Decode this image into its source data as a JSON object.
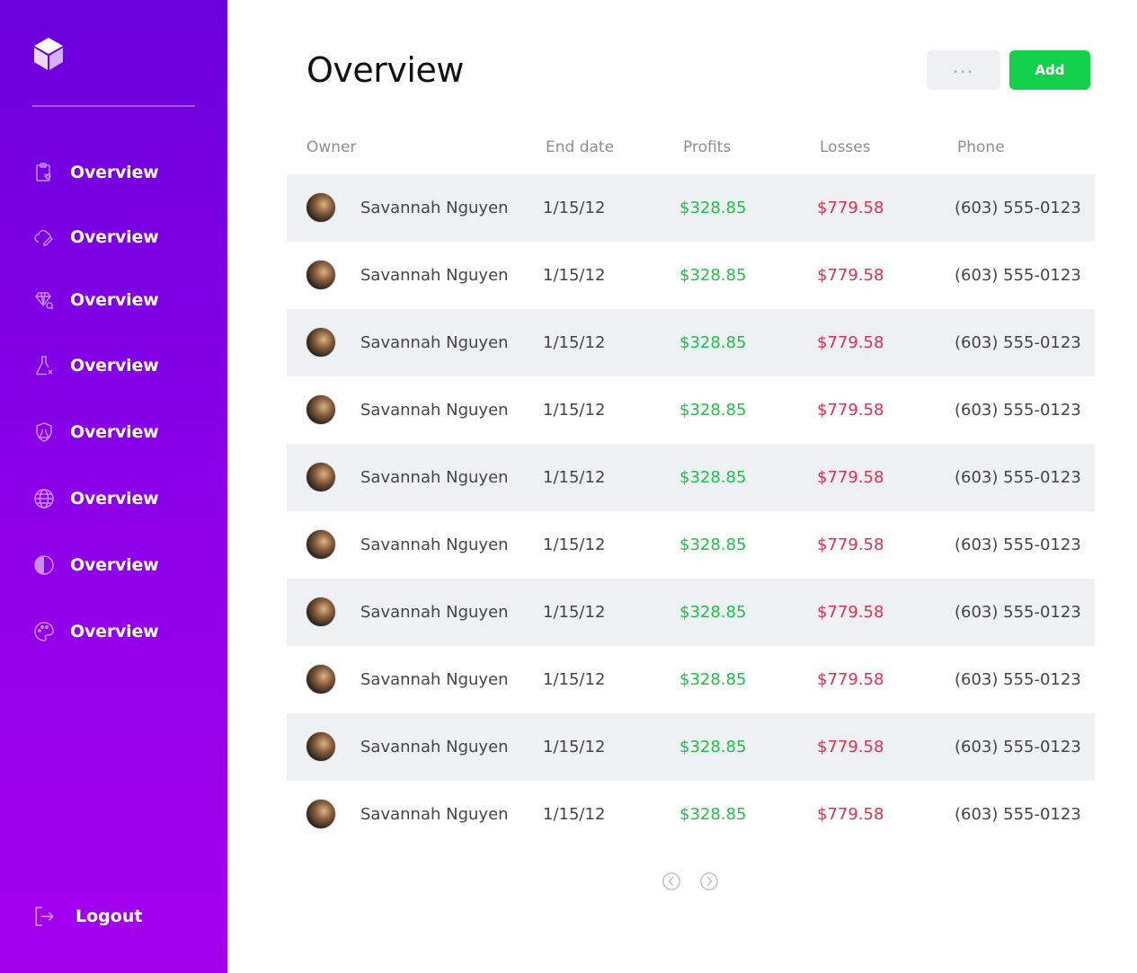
{
  "colors": {
    "sidebar_top": "#6a00dc",
    "sidebar_bottom": "#a300ec",
    "add_button": "#13d14a",
    "profit": "#1fbf48",
    "loss": "#e0304e",
    "row_shade": "#eef1f4"
  },
  "sidebar": {
    "logo_icon": "cube-icon",
    "items": [
      {
        "label": "Overview",
        "icon": "clipboard-heart-icon"
      },
      {
        "label": "Overview",
        "icon": "cloud-pencil-icon"
      },
      {
        "label": "Overview",
        "icon": "diamond-search-icon"
      },
      {
        "label": "Overview",
        "icon": "flask-x-icon"
      },
      {
        "label": "Overview",
        "icon": "shield-flask-icon"
      },
      {
        "label": "Overview",
        "icon": "globe-icon"
      },
      {
        "label": "Overview",
        "icon": "half-circle-icon"
      },
      {
        "label": "Overview",
        "icon": "palette-icon"
      }
    ],
    "logout_label": "Logout"
  },
  "header": {
    "title": "Overview",
    "more_label": "...",
    "add_label": "Add"
  },
  "table": {
    "columns": [
      "Owner",
      "End date",
      "Profits",
      "Losses",
      "Phone"
    ],
    "rows": [
      {
        "owner": "Savannah Nguyen",
        "end_date": "1/15/12",
        "profit": "$328.85",
        "loss": "$779.58",
        "phone": "(603) 555-0123"
      },
      {
        "owner": "Savannah Nguyen",
        "end_date": "1/15/12",
        "profit": "$328.85",
        "loss": "$779.58",
        "phone": "(603) 555-0123"
      },
      {
        "owner": "Savannah Nguyen",
        "end_date": "1/15/12",
        "profit": "$328.85",
        "loss": "$779.58",
        "phone": "(603) 555-0123"
      },
      {
        "owner": "Savannah Nguyen",
        "end_date": "1/15/12",
        "profit": "$328.85",
        "loss": "$779.58",
        "phone": "(603) 555-0123"
      },
      {
        "owner": "Savannah Nguyen",
        "end_date": "1/15/12",
        "profit": "$328.85",
        "loss": "$779.58",
        "phone": "(603) 555-0123"
      },
      {
        "owner": "Savannah Nguyen",
        "end_date": "1/15/12",
        "profit": "$328.85",
        "loss": "$779.58",
        "phone": "(603) 555-0123"
      },
      {
        "owner": "Savannah Nguyen",
        "end_date": "1/15/12",
        "profit": "$328.85",
        "loss": "$779.58",
        "phone": "(603) 555-0123"
      },
      {
        "owner": "Savannah Nguyen",
        "end_date": "1/15/12",
        "profit": "$328.85",
        "loss": "$779.58",
        "phone": "(603) 555-0123"
      },
      {
        "owner": "Savannah Nguyen",
        "end_date": "1/15/12",
        "profit": "$328.85",
        "loss": "$779.58",
        "phone": "(603) 555-0123"
      },
      {
        "owner": "Savannah Nguyen",
        "end_date": "1/15/12",
        "profit": "$328.85",
        "loss": "$779.58",
        "phone": "(603) 555-0123"
      }
    ]
  },
  "pagination": {
    "prev_icon": "chevron-left-circle-icon",
    "next_icon": "chevron-right-circle-icon"
  }
}
